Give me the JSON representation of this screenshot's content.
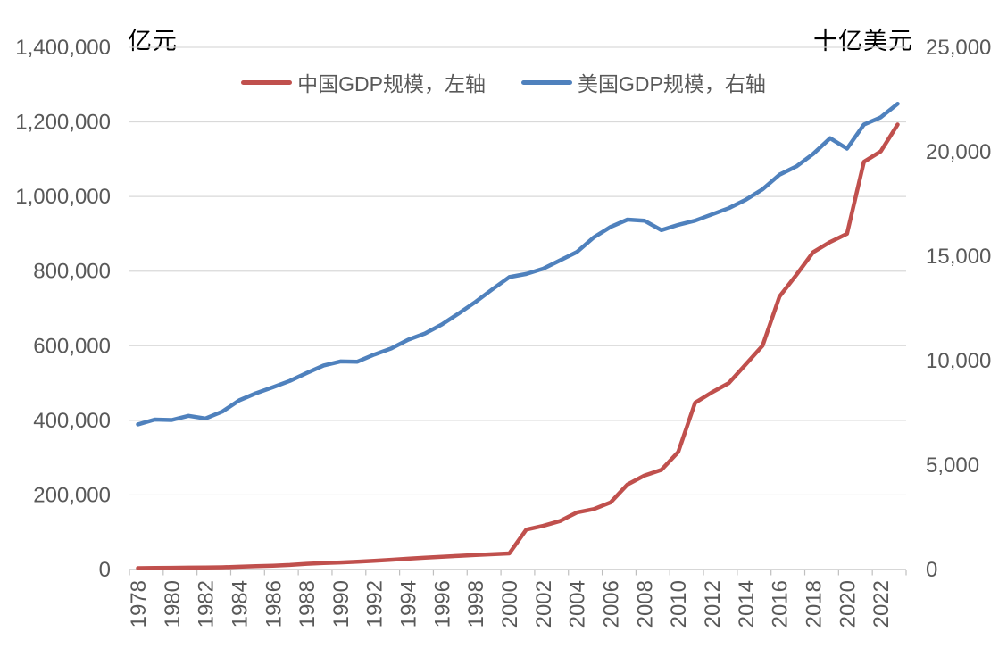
{
  "chart_data": {
    "type": "line",
    "title": "",
    "grid": true,
    "legend_position": "top",
    "left_axis": {
      "title": "亿元",
      "min": 0,
      "max": 1400000,
      "tick_labels": [
        "0",
        "200,000",
        "400,000",
        "600,000",
        "800,000",
        "1,000,000",
        "1,200,000",
        "1,400,000"
      ]
    },
    "right_axis": {
      "title": "十亿美元",
      "min": 0,
      "max": 25000,
      "tick_labels": [
        "0",
        "5,000",
        "10,000",
        "15,000",
        "20,000",
        "25,000"
      ]
    },
    "x": [
      1978,
      1979,
      1980,
      1981,
      1982,
      1983,
      1984,
      1985,
      1986,
      1987,
      1988,
      1989,
      1990,
      1991,
      1992,
      1993,
      1994,
      1995,
      1996,
      1997,
      1998,
      1999,
      2000,
      2001,
      2002,
      2003,
      2004,
      2005,
      2006,
      2007,
      2008,
      2009,
      2010,
      2011,
      2012,
      2013,
      2014,
      2015,
      2016,
      2017,
      2018,
      2019,
      2020,
      2021,
      2022,
      2023
    ],
    "x_tick_labels": [
      "1978",
      "1980",
      "1982",
      "1984",
      "1986",
      "1988",
      "1990",
      "1992",
      "1994",
      "1996",
      "1998",
      "2000",
      "2002",
      "2004",
      "2006",
      "2008",
      "2010",
      "2012",
      "2014",
      "2016",
      "2018",
      "2020",
      "2022"
    ],
    "series": [
      {
        "name": "中国GDP规模，左轴",
        "axis": "left",
        "color": "#C0504D",
        "values": [
          3700,
          4100,
          4600,
          5000,
          5400,
          6000,
          7300,
          9100,
          10400,
          12200,
          15200,
          17200,
          19000,
          21000,
          23500,
          26000,
          29000,
          31500,
          34000,
          36500,
          39000,
          41000,
          43000,
          107000,
          117000,
          130000,
          153000,
          162000,
          180000,
          228000,
          252000,
          267000,
          315000,
          447000,
          475000,
          500000,
          550000,
          600000,
          732000,
          790000,
          851000,
          878000,
          900000,
          1093000,
          1121000,
          1193000
        ]
      },
      {
        "name": "美国GDP规模，右轴",
        "axis": "right",
        "color": "#4F81BD",
        "values": [
          6950,
          7180,
          7160,
          7360,
          7230,
          7560,
          8100,
          8440,
          8730,
          9030,
          9410,
          9770,
          9960,
          9950,
          10290,
          10580,
          11000,
          11300,
          11730,
          12260,
          12810,
          13420,
          14000,
          14150,
          14400,
          14800,
          15200,
          15900,
          16400,
          16750,
          16700,
          16250,
          16500,
          16700,
          17000,
          17300,
          17700,
          18200,
          18900,
          19300,
          19900,
          20650,
          20150,
          21300,
          21650,
          22300
        ]
      }
    ]
  }
}
